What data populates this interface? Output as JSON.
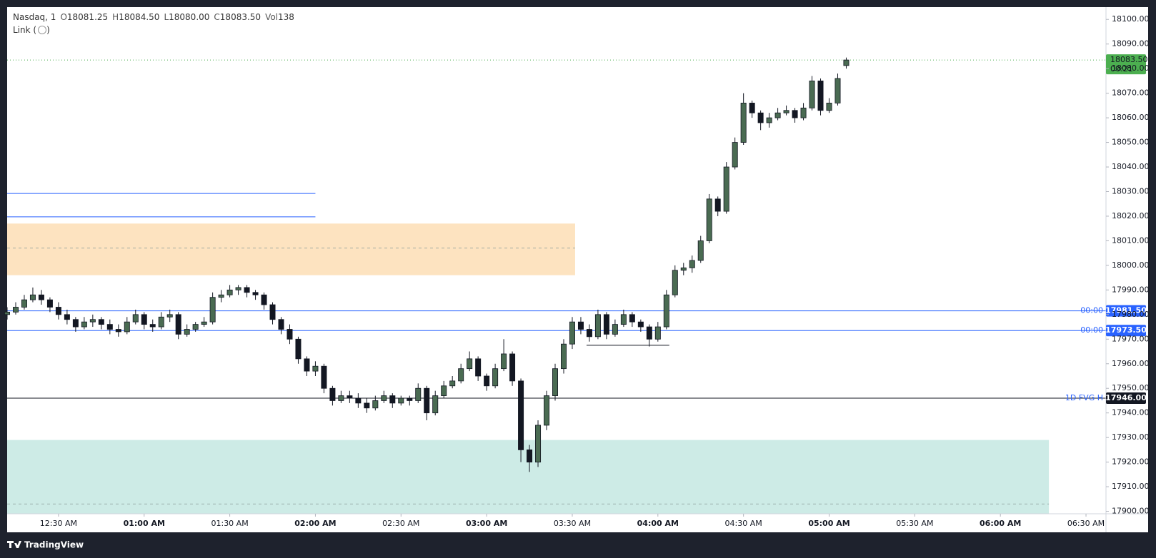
{
  "chart_data": {
    "type": "candlestick",
    "symbol": "Nasdaq, 1",
    "ohlc_labels": [
      "O",
      "H",
      "L",
      "C",
      "Vol"
    ],
    "volume": 138,
    "link_label": "Link (",
    "link_close": ")",
    "x": [
      12,
      15,
      18,
      21,
      24,
      27,
      30,
      33,
      36,
      39,
      42,
      45,
      48,
      51,
      54,
      57,
      60,
      63,
      66,
      69,
      72,
      75,
      78,
      81,
      84,
      87,
      90,
      93,
      96,
      99,
      102,
      105,
      108,
      111,
      114,
      117,
      120,
      123,
      126,
      129,
      132,
      135,
      138,
      141,
      144,
      147,
      150,
      153,
      156,
      159,
      162,
      165,
      168,
      171,
      174,
      177,
      180,
      183,
      186,
      189,
      192,
      195,
      198,
      201,
      204,
      207,
      210,
      213,
      216,
      219,
      222,
      225,
      228,
      231,
      234,
      237,
      240,
      243,
      246,
      249,
      252,
      255,
      258,
      261,
      264,
      267,
      270,
      273,
      276,
      279,
      282,
      285,
      288,
      291,
      294,
      297,
      300,
      303,
      306
    ],
    "open": [
      17980,
      17981,
      17983,
      17986,
      17988,
      17986,
      17983,
      17980,
      17978,
      17975,
      17977,
      17978,
      17976,
      17974,
      17973,
      17977,
      17980,
      17976,
      17975,
      17979,
      17980,
      17972,
      17974,
      17976,
      17977,
      17987,
      17988,
      17990,
      17991,
      17989,
      17988,
      17984,
      17978,
      17974,
      17970,
      17962,
      17957,
      17959,
      17950,
      17945,
      17947,
      17946,
      17944,
      17942,
      17945,
      17947,
      17944,
      17946,
      17945,
      17950,
      17940,
      17947,
      17951,
      17953,
      17958,
      17962,
      17955,
      17951,
      17958,
      17964,
      17953,
      17925,
      17920,
      17935,
      17947,
      17958,
      17968,
      17977,
      17974,
      17971,
      17980,
      17972,
      17976,
      17980,
      17977,
      17975,
      17970,
      17975,
      17988,
      17998,
      17999,
      18002,
      18010,
      18027,
      18022,
      18040,
      18050,
      18066,
      18062,
      18058,
      18060,
      18062,
      18063,
      18060,
      18064,
      18075,
      18063,
      18066,
      18081.25
    ],
    "high": [
      17983,
      17985,
      17988,
      17991,
      17990,
      17987,
      17985,
      17982,
      17979,
      17979,
      17980,
      17979,
      17978,
      17976,
      17979,
      17982,
      17981,
      17978,
      17981,
      17982,
      17981,
      17976,
      17977,
      17979,
      17989,
      17990,
      17992,
      17992,
      17992,
      17990,
      17989,
      17985,
      17979,
      17976,
      17971,
      17963,
      17961,
      17960,
      17951,
      17949,
      17949,
      17948,
      17946,
      17947,
      17949,
      17948,
      17947,
      17947,
      17952,
      17951,
      17949,
      17953,
      17955,
      17960,
      17965,
      17963,
      17956,
      17960,
      17970,
      17965,
      17954,
      17927,
      17937,
      17949,
      17960,
      17970,
      17979,
      17979,
      17976,
      17982,
      17981,
      17978,
      17982,
      17981,
      17978,
      17976,
      17977,
      17990,
      18000,
      18001,
      18004,
      18012,
      18029,
      18028,
      18042,
      18052,
      18070,
      18067,
      18063,
      18062,
      18064,
      18065,
      18064,
      18066,
      18077,
      18076,
      18068,
      18078,
      18084.5
    ],
    "low": [
      17978,
      17980,
      17982,
      17985,
      17984,
      17981,
      17978,
      17976,
      17973,
      17974,
      17975,
      17974,
      17972,
      17971,
      17972,
      17976,
      17974,
      17973,
      17974,
      17977,
      17970,
      17971,
      17973,
      17975,
      17976,
      17985,
      17987,
      17988,
      17987,
      17986,
      17982,
      17976,
      17972,
      17968,
      17960,
      17955,
      17955,
      17948,
      17943,
      17944,
      17944,
      17942,
      17940,
      17941,
      17944,
      17942,
      17943,
      17943,
      17944,
      17937,
      17939,
      17946,
      17950,
      17952,
      17957,
      17953,
      17949,
      17950,
      17957,
      17951,
      17920,
      17916,
      17918,
      17933,
      17945,
      17956,
      17966,
      17972,
      17969,
      17970,
      17970,
      17971,
      17975,
      17975,
      17973,
      17967,
      17969,
      17974,
      17987,
      17996,
      17997,
      18001,
      18009,
      18020,
      18021,
      18039,
      18049,
      18060,
      18055,
      18056,
      18059,
      18061,
      18058,
      18059,
      18063,
      18061,
      18062,
      18065,
      18080
    ],
    "close": [
      17981,
      17983,
      17986,
      17988,
      17986,
      17983,
      17980,
      17978,
      17975,
      17977,
      17978,
      17976,
      17974,
      17973,
      17977,
      17980,
      17976,
      17975,
      17979,
      17980,
      17972,
      17974,
      17976,
      17977,
      17987,
      17988,
      17990,
      17991,
      17989,
      17988,
      17984,
      17978,
      17974,
      17970,
      17962,
      17957,
      17959,
      17950,
      17945,
      17947,
      17946,
      17944,
      17942,
      17945,
      17947,
      17944,
      17946,
      17945,
      17950,
      17940,
      17947,
      17951,
      17953,
      17958,
      17962,
      17955,
      17951,
      17958,
      17964,
      17953,
      17925,
      17920,
      17935,
      17947,
      17958,
      17968,
      17977,
      17974,
      17971,
      17980,
      17972,
      17976,
      17980,
      17977,
      17975,
      17970,
      17975,
      17988,
      17998,
      17999,
      18002,
      18010,
      18027,
      18022,
      18040,
      18050,
      18066,
      18062,
      18058,
      18060,
      18062,
      18063,
      18060,
      18064,
      18075,
      18063,
      18066,
      18076,
      18083.5
    ],
    "ohlc_value_labels": [
      "18081.25",
      "18084.50",
      "18080.00",
      "18083.50"
    ],
    "up_color": "#4a6b52",
    "down_color": "#131722",
    "xlim": [
      12,
      397
    ],
    "xticks": [
      {
        "value": 30,
        "label": "12:30 AM"
      },
      {
        "value": 60,
        "label": "01:00 AM"
      },
      {
        "value": 90,
        "label": "01:30 AM"
      },
      {
        "value": 120,
        "label": "02:00 AM"
      },
      {
        "value": 150,
        "label": "02:30 AM"
      },
      {
        "value": 180,
        "label": "03:00 AM"
      },
      {
        "value": 210,
        "label": "03:30 AM"
      },
      {
        "value": 240,
        "label": "04:00 AM"
      },
      {
        "value": 270,
        "label": "04:30 AM"
      },
      {
        "value": 300,
        "label": "05:00 AM"
      },
      {
        "value": 330,
        "label": "05:30 AM"
      },
      {
        "value": 360,
        "label": "06:00 AM"
      },
      {
        "value": 390,
        "label": "06:30 AM"
      }
    ],
    "ylim": [
      17899,
      18105
    ],
    "yticks": [
      {
        "value": 17900,
        "label": "17900.00"
      },
      {
        "value": 17910,
        "label": "17910.00"
      },
      {
        "value": 17920,
        "label": "17920.00"
      },
      {
        "value": 17930,
        "label": "17930.00"
      },
      {
        "value": 17940,
        "label": "17940.00"
      },
      {
        "value": 17950,
        "label": "17950.00"
      },
      {
        "value": 17960,
        "label": "17960.00"
      },
      {
        "value": 17970,
        "label": "17970.00"
      },
      {
        "value": 17980,
        "label": "17980.00"
      },
      {
        "value": 17990,
        "label": "17990.00"
      },
      {
        "value": 18000,
        "label": "18000.00"
      },
      {
        "value": 18010,
        "label": "18010.00"
      },
      {
        "value": 18020,
        "label": "18020.00"
      },
      {
        "value": 18030,
        "label": "18030.00"
      },
      {
        "value": 18040,
        "label": "18040.00"
      },
      {
        "value": 18050,
        "label": "18050.00"
      },
      {
        "value": 18060,
        "label": "18060.00"
      },
      {
        "value": 18070,
        "label": "18070.00"
      },
      {
        "value": 18080,
        "label": "18080.00"
      },
      {
        "value": 18090,
        "label": "18090.00"
      },
      {
        "value": 18100,
        "label": "18100.00"
      }
    ],
    "grid": false,
    "zones": [
      {
        "from": 12,
        "to": 211,
        "top": 18017,
        "bottom": 17996,
        "mid": 18007,
        "color": "#fde3c0"
      },
      {
        "from": 12,
        "to": 377,
        "top": 17929,
        "bottom": 17899,
        "mid": 17903,
        "color": "#cdebe6"
      }
    ],
    "segments": [
      {
        "from": 12,
        "to": 120,
        "price": 18029.25,
        "color": "#2962ff"
      },
      {
        "from": 12,
        "to": 120,
        "price": 18019.75,
        "color": "#2962ff"
      },
      {
        "from": 215,
        "to": 244,
        "price": 17967.5,
        "color": "#131722"
      }
    ],
    "levels": [
      {
        "price": 17981.5,
        "value_label": "17981.50",
        "tag": "00:00",
        "color": "#2962ff"
      },
      {
        "price": 17973.5,
        "value_label": "17973.50",
        "tag": "00:00",
        "color": "#2962ff"
      },
      {
        "price": 17946,
        "value_label": "17946.00",
        "tag": "1D FVG H",
        "color": "#131722"
      }
    ],
    "last_price": {
      "price": 18083.5,
      "value_label": "18083.50",
      "countdown": "00:21",
      "color": "#4caf50"
    }
  },
  "footer": "TradingView"
}
